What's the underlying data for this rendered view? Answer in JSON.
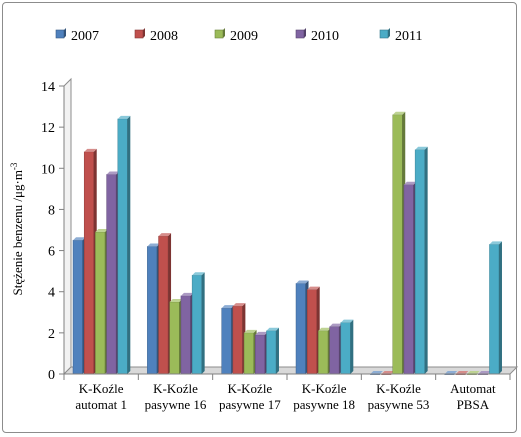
{
  "chart_data": {
    "type": "bar",
    "title": "",
    "xlabel": "",
    "ylabel": "Stężenie benzenu /μg·m",
    "ylabel_superscript": "-3",
    "ylim": [
      0,
      14
    ],
    "yticks": [
      "0",
      "2",
      "4",
      "6",
      "8",
      "10",
      "12",
      "14"
    ],
    "grid": false,
    "legend_position": "top",
    "categories": [
      [
        "K-Koźle",
        "automat 1"
      ],
      [
        "K-Koźle",
        "pasywne 16"
      ],
      [
        "K-Koźle",
        "pasywne 17"
      ],
      [
        "K-Koźle",
        "pasywne 18"
      ],
      [
        "K-Koźle",
        "pasywne 53"
      ],
      [
        "Automat",
        "PBSA"
      ]
    ],
    "series": [
      {
        "name": "2007",
        "color": "#4f81bd",
        "values": [
          6.5,
          6.2,
          3.2,
          4.4,
          0,
          0
        ]
      },
      {
        "name": "2008",
        "color": "#c0504d",
        "values": [
          10.8,
          6.7,
          3.3,
          4.1,
          0,
          0
        ]
      },
      {
        "name": "2009",
        "color": "#9bbb59",
        "values": [
          6.9,
          3.5,
          2.0,
          2.1,
          12.6,
          0
        ]
      },
      {
        "name": "2010",
        "color": "#8064a2",
        "values": [
          9.7,
          3.8,
          1.9,
          2.3,
          9.2,
          0
        ]
      },
      {
        "name": "2011",
        "color": "#4bacc6",
        "values": [
          12.4,
          4.8,
          2.1,
          2.5,
          10.9,
          6.3
        ]
      }
    ]
  }
}
